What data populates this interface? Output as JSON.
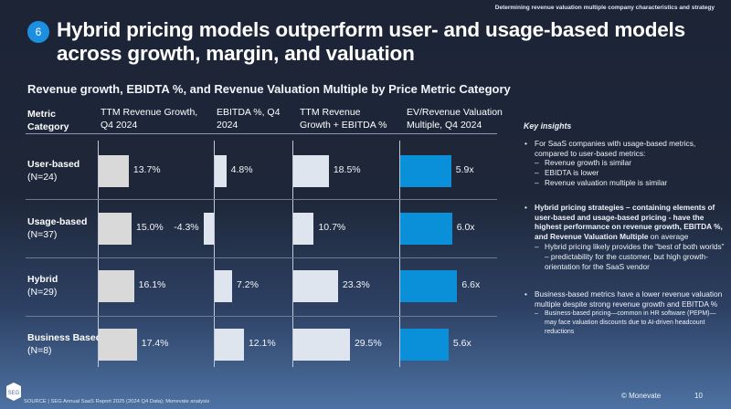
{
  "header": {
    "kicker": "Determining revenue valuation multiple company characteristics and strategy",
    "badge": "6",
    "title": "Hybrid pricing models outperform user- and usage-based models across growth, margin, and valuation"
  },
  "chart_data": {
    "type": "bar",
    "title": "Revenue growth, EBIDTA %, and Revenue Valuation Multiple by Price Metric Category",
    "category_header": "Metric Category",
    "categories": [
      {
        "name": "User-based",
        "n": "(N=24)"
      },
      {
        "name": "Usage-based",
        "n": "(N=37)"
      },
      {
        "name": "Hybrid",
        "n": "(N=29)"
      },
      {
        "name": "Business Based",
        "n": "(N=8)"
      }
    ],
    "series": [
      {
        "name": "TTM Revenue Growth, Q4 2024",
        "values": [
          13.7,
          15.0,
          16.1,
          17.4
        ],
        "labels": [
          "13.7%",
          "15.0%",
          "16.1%",
          "17.4%"
        ],
        "color": "#d9d9d9"
      },
      {
        "name": "EBITDA %, Q4 2024",
        "values": [
          4.8,
          -4.3,
          7.2,
          12.1
        ],
        "labels": [
          "4.8%",
          "-4.3%",
          "7.2%",
          "12.1%"
        ],
        "color": "#dfe5ef"
      },
      {
        "name": "TTM Revenue Growth + EBITDA %",
        "values": [
          18.5,
          10.7,
          23.3,
          29.5
        ],
        "labels": [
          "18.5%",
          "10.7%",
          "23.3%",
          "29.5%"
        ],
        "color": "#dfe5ef"
      },
      {
        "name": "EV/Revenue Valuation Multiple, Q4 2024",
        "values": [
          5.9,
          6.0,
          6.6,
          5.6
        ],
        "labels": [
          "5.9x",
          "6.0x",
          "6.6x",
          "5.6x"
        ],
        "color": "#0a8fd9"
      }
    ],
    "orientation": "horizontal",
    "grid": false
  },
  "insights": {
    "heading": "Key insights",
    "b1": "For SaaS companies with usage-based metrics, compared to user-based metrics:",
    "b1_subs": [
      "Revenue growth is similar",
      "EBIDTA is lower",
      "Revenue valuation multiple is similar"
    ],
    "b2_bold": "Hybrid pricing strategies – containing elements of user-based and usage-based pricing - have the highest performance on revenue growth, EBITDA %, and Revenue Valuation Multiple",
    "b2_rest": " on average",
    "b2_sub": "Hybrid pricing likely provides the “best of both worlds” – predictability for the customer, but high growth-orientation for the SaaS vendor",
    "b3": "Business-based metrics have a lower revenue valuation multiple despite strong revenue growth and EBITDA %",
    "b3_sub": "Business-based pricing—common in HR software (PEPM)—may face valuation discounts due to AI-driven headcount reductions"
  },
  "footer": {
    "source": "SOURCE | SEG Annual SaaS Report 2025 (2024 Q4 Data); Monevate analysis",
    "copyright": "© Monevate",
    "page": "10",
    "logo_text": "SEG"
  }
}
